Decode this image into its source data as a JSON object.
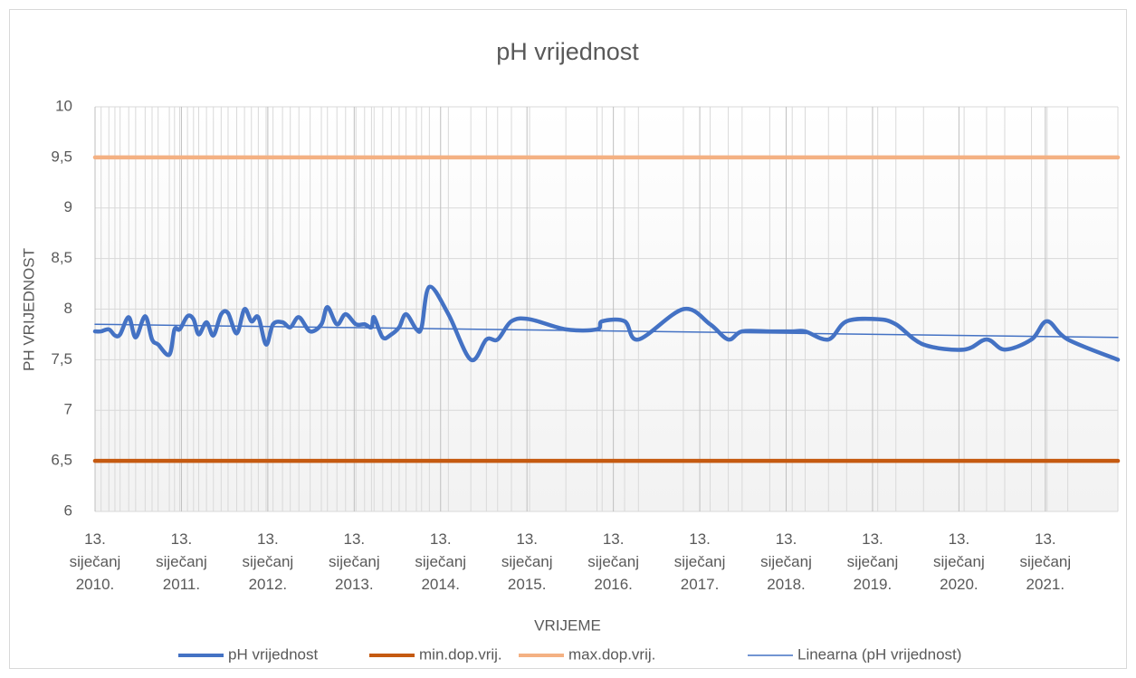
{
  "chart_data": {
    "type": "line",
    "title": "pH vrijednost",
    "x_label": "VRIJEME",
    "y_label": "PH VRIJEDNOST",
    "x": [
      2010.0,
      2010.07,
      2010.16,
      2010.23,
      2010.29,
      2010.39,
      2010.47,
      2010.58,
      2010.66,
      2010.73,
      2010.86,
      2010.92,
      2010.98,
      2011.07,
      2011.14,
      2011.2,
      2011.29,
      2011.37,
      2011.46,
      2011.54,
      2011.64,
      2011.73,
      2011.81,
      2011.89,
      2011.98,
      2012.06,
      2012.17,
      2012.26,
      2012.36,
      2012.49,
      2012.62,
      2012.69,
      2012.8,
      2012.9,
      2013.02,
      2013.12,
      2013.2,
      2013.23,
      2013.33,
      2013.43,
      2013.52,
      2013.6,
      2013.72,
      2013.78,
      2013.87,
      2014.09,
      2014.35,
      2014.53,
      2014.66,
      2014.82,
      2015.03,
      2015.45,
      2015.81,
      2015.87,
      2016.13,
      2016.29,
      2016.81,
      2017.12,
      2017.33,
      2017.49,
      2017.81,
      2018.07,
      2018.22,
      2018.49,
      2018.7,
      2019.06,
      2019.27,
      2019.59,
      2020.06,
      2020.32,
      2020.53,
      2020.84,
      2021.02,
      2021.26,
      2021.84
    ],
    "series": [
      {
        "name": "pH vrijednost",
        "color": "#4472c4",
        "smooth": true,
        "values": [
          7.78,
          7.78,
          7.8,
          7.74,
          7.75,
          7.92,
          7.72,
          7.93,
          7.7,
          7.65,
          7.55,
          7.8,
          7.8,
          7.93,
          7.9,
          7.75,
          7.87,
          7.74,
          7.95,
          7.96,
          7.76,
          8.0,
          7.88,
          7.92,
          7.65,
          7.85,
          7.87,
          7.82,
          7.92,
          7.78,
          7.85,
          8.02,
          7.85,
          7.95,
          7.85,
          7.85,
          7.82,
          7.92,
          7.72,
          7.75,
          7.82,
          7.95,
          7.8,
          7.82,
          8.22,
          7.95,
          7.5,
          7.7,
          7.7,
          7.88,
          7.9,
          7.8,
          7.8,
          7.88,
          7.88,
          7.7,
          8.0,
          7.85,
          7.7,
          7.78,
          7.78,
          7.78,
          7.78,
          7.7,
          7.88,
          7.9,
          7.85,
          7.65,
          7.6,
          7.7,
          7.6,
          7.7,
          7.88,
          7.7,
          7.5
        ]
      },
      {
        "name": "min.dop.vrij.",
        "color": "#c55a11",
        "x": [
          2010.0,
          2021.84
        ],
        "values": [
          6.5,
          6.5
        ]
      },
      {
        "name": "max.dop.vrij.",
        "color": "#f4b183",
        "x": [
          2010.0,
          2021.84
        ],
        "values": [
          9.5,
          9.5
        ]
      },
      {
        "name": "Linearna (pH vrijednost)",
        "color": "#4472c4",
        "thin": true,
        "x": [
          2010.0,
          2021.84
        ],
        "values": [
          7.85,
          7.72
        ]
      }
    ],
    "xlim": [
      2010.0,
      2021.84
    ],
    "xticks": [
      {
        "value": 2010,
        "label": "13. siječanj 2010."
      },
      {
        "value": 2011,
        "label": "13. siječanj 2011."
      },
      {
        "value": 2012,
        "label": "13. siječanj 2012."
      },
      {
        "value": 2013,
        "label": "13. siječanj 2013."
      },
      {
        "value": 2014,
        "label": "13. siječanj 2014."
      },
      {
        "value": 2015,
        "label": "13. siječanj 2015."
      },
      {
        "value": 2016,
        "label": "13. siječanj 2016."
      },
      {
        "value": 2017,
        "label": "13. siječanj 2017."
      },
      {
        "value": 2018,
        "label": "13. siječanj 2018."
      },
      {
        "value": 2019,
        "label": "13. siječanj 2019."
      },
      {
        "value": 2020,
        "label": "13. siječanj 2020."
      },
      {
        "value": 2021,
        "label": "13. siječanj 2021."
      }
    ],
    "ylim": [
      6,
      10
    ],
    "yticks": [
      6,
      {
        "value": 6.5,
        "label": "6,5"
      },
      7,
      {
        "value": 7.5,
        "label": "7,5"
      },
      8,
      {
        "value": 8.5,
        "label": "8,5"
      },
      9,
      {
        "value": 9.5,
        "label": "9,5"
      },
      10
    ],
    "grid": true,
    "legend": "bottom"
  }
}
